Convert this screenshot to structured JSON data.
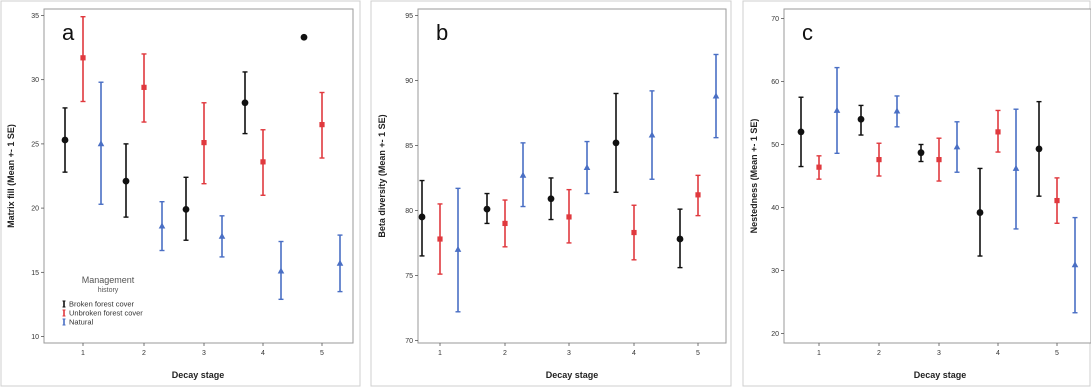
{
  "colors": {
    "broken": "#111111",
    "unbroken": "#e0393e",
    "natural": "#4a6fc4",
    "frame": "#9a9a9a",
    "plot_bg": "#ffffff",
    "panel_bg": "#ffffff"
  },
  "legend": {
    "title": "Management",
    "subtitle": "history",
    "items": [
      {
        "label": "Broken forest cover",
        "color_key": "broken"
      },
      {
        "label": "Unbroken forest cover",
        "color_key": "unbroken"
      },
      {
        "label": "Natural",
        "color_key": "natural"
      }
    ]
  },
  "chart_data": [
    {
      "type": "scatter",
      "panel_label": "a",
      "xlabel": "Decay stage",
      "ylabel": "Matrix fill (Mean +- 1 SE)",
      "categories": [
        "1",
        "2",
        "3",
        "4",
        "5"
      ],
      "ylim": [
        9.5,
        35.5
      ],
      "yticks": [
        "10",
        "15",
        "20",
        "25",
        "30",
        "35"
      ],
      "grid": false,
      "legend_position": "bottom-left",
      "series": [
        {
          "name": "Broken forest cover",
          "color_key": "broken",
          "marker": "circle",
          "mean": [
            25.3,
            22.1,
            19.9,
            28.2,
            33.3
          ],
          "lower": [
            22.8,
            19.3,
            17.5,
            25.8,
            null
          ],
          "upper": [
            27.8,
            25.0,
            22.4,
            30.6,
            null
          ]
        },
        {
          "name": "Unbroken forest cover",
          "color_key": "unbroken",
          "marker": "square",
          "mean": [
            31.7,
            29.4,
            25.1,
            23.6,
            26.5
          ],
          "lower": [
            28.3,
            26.7,
            21.9,
            21.0,
            23.9
          ],
          "upper": [
            34.9,
            32.0,
            28.2,
            26.1,
            29.0
          ]
        },
        {
          "name": "Natural",
          "color_key": "natural",
          "marker": "triangle",
          "mean": [
            25.0,
            18.6,
            17.8,
            15.1,
            15.7
          ],
          "lower": [
            20.3,
            16.7,
            16.2,
            12.9,
            13.5
          ],
          "upper": [
            29.8,
            20.5,
            19.4,
            17.4,
            17.9
          ]
        }
      ]
    },
    {
      "type": "scatter",
      "panel_label": "b",
      "xlabel": "Decay stage",
      "ylabel": "Beta diversity (Mean +- 1 SE)",
      "categories": [
        "1",
        "2",
        "3",
        "4",
        "5"
      ],
      "ylim": [
        69.8,
        95.5
      ],
      "yticks": [
        "70",
        "75",
        "80",
        "85",
        "90",
        "95"
      ],
      "grid": false,
      "series": [
        {
          "name": "Broken forest cover",
          "color_key": "broken",
          "marker": "circle",
          "mean": [
            79.5,
            80.1,
            80.9,
            85.2,
            77.8
          ],
          "lower": [
            76.5,
            79.0,
            79.3,
            81.4,
            75.6
          ],
          "upper": [
            82.3,
            81.3,
            82.5,
            89.0,
            80.1
          ]
        },
        {
          "name": "Unbroken forest cover",
          "color_key": "unbroken",
          "marker": "square",
          "mean": [
            77.8,
            79.0,
            79.5,
            78.3,
            81.2
          ],
          "lower": [
            75.1,
            77.2,
            77.5,
            76.2,
            79.6
          ],
          "upper": [
            80.5,
            80.8,
            81.6,
            80.4,
            82.7
          ]
        },
        {
          "name": "Natural",
          "color_key": "natural",
          "marker": "triangle",
          "mean": [
            77.0,
            82.7,
            83.3,
            85.8,
            88.8
          ],
          "lower": [
            72.2,
            80.3,
            81.3,
            82.4,
            85.6
          ],
          "upper": [
            81.7,
            85.2,
            85.3,
            89.2,
            92.0
          ]
        }
      ]
    },
    {
      "type": "scatter",
      "panel_label": "c",
      "xlabel": "Decay stage",
      "ylabel": "Nestedness (Mean +- 1 SE)",
      "categories": [
        "1",
        "2",
        "3",
        "4",
        "5"
      ],
      "ylim": [
        18.5,
        71.5
      ],
      "yticks": [
        "20",
        "30",
        "40",
        "50",
        "60",
        "70"
      ],
      "grid": false,
      "series": [
        {
          "name": "Broken forest cover",
          "color_key": "broken",
          "marker": "circle",
          "mean": [
            52.0,
            54.0,
            48.7,
            39.2,
            49.3
          ],
          "lower": [
            46.5,
            51.5,
            47.3,
            32.3,
            41.8
          ],
          "upper": [
            57.5,
            56.2,
            50.0,
            46.2,
            56.8
          ]
        },
        {
          "name": "Unbroken forest cover",
          "color_key": "unbroken",
          "marker": "square",
          "mean": [
            46.4,
            47.6,
            47.6,
            52.0,
            41.1
          ],
          "lower": [
            44.5,
            45.0,
            44.2,
            48.8,
            37.5
          ],
          "upper": [
            48.2,
            50.2,
            51.0,
            55.4,
            44.7
          ]
        },
        {
          "name": "Natural",
          "color_key": "natural",
          "marker": "triangle",
          "mean": [
            55.4,
            55.3,
            49.6,
            46.2,
            30.9
          ],
          "lower": [
            48.6,
            52.8,
            45.6,
            36.6,
            23.3
          ],
          "upper": [
            62.2,
            57.7,
            53.6,
            55.6,
            38.4
          ]
        }
      ]
    }
  ]
}
